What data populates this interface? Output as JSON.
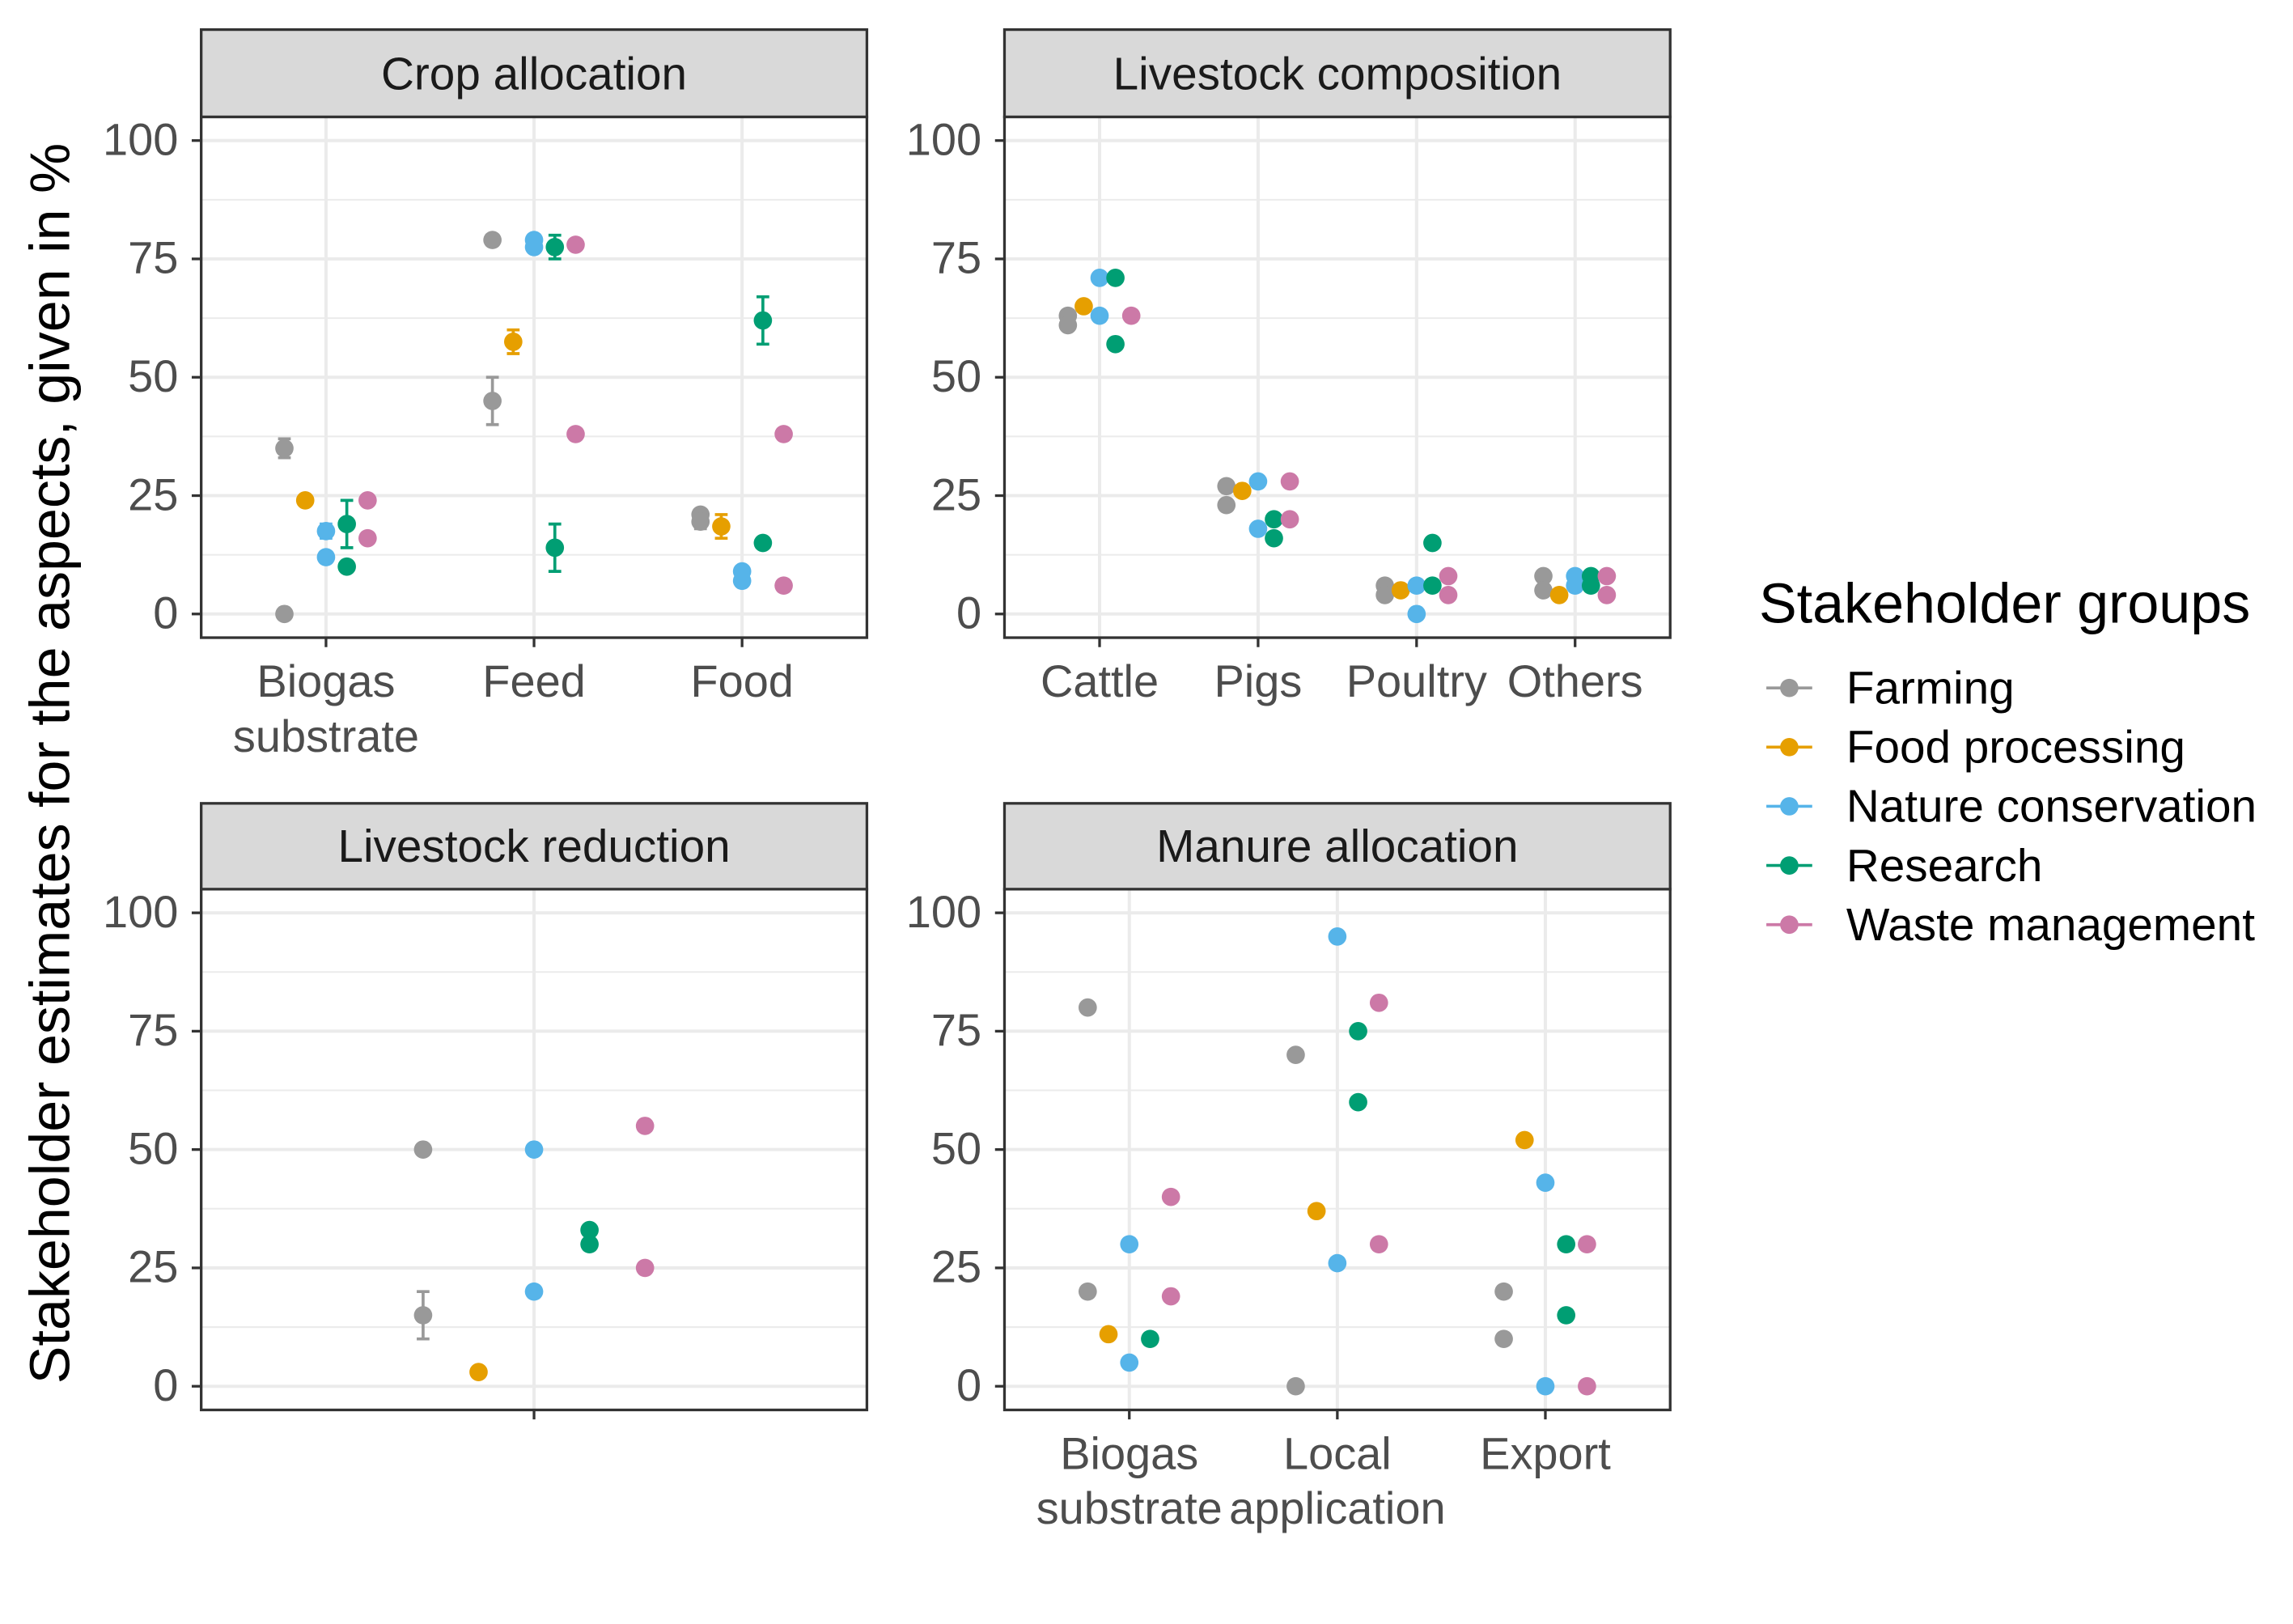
{
  "chart_data": {
    "type": "scatter",
    "ylabel": "Stakeholder estimates for the aspects, given in %",
    "ylim": [
      0,
      100
    ],
    "y_ticks": [
      0,
      25,
      50,
      75,
      100
    ],
    "grid": true,
    "legend": {
      "title": "Stakeholder groups",
      "position": "right"
    },
    "groups": [
      {
        "name": "Farming",
        "color": "#999999"
      },
      {
        "name": "Food processing",
        "color": "#E69F00"
      },
      {
        "name": "Nature conservation",
        "color": "#56B4E9"
      },
      {
        "name": "Research",
        "color": "#009E73"
      },
      {
        "name": "Waste management",
        "color": "#CC79A7"
      }
    ],
    "panels": [
      {
        "title": "Crop allocation",
        "categories": [
          "Biogas\nsubstrate",
          "Feed",
          "Food"
        ],
        "points": [
          {
            "group": "Farming",
            "category": "Biogas\nsubstrate",
            "y": 35,
            "error": [
              33,
              37
            ]
          },
          {
            "group": "Farming",
            "category": "Biogas\nsubstrate",
            "y": 0
          },
          {
            "group": "Food processing",
            "category": "Biogas\nsubstrate",
            "y": 24
          },
          {
            "group": "Nature conservation",
            "category": "Biogas\nsubstrate",
            "y": 17.5,
            "error": [
              16,
              19
            ]
          },
          {
            "group": "Nature conservation",
            "category": "Biogas\nsubstrate",
            "y": 12
          },
          {
            "group": "Research",
            "category": "Biogas\nsubstrate",
            "y": 19,
            "error": [
              14,
              24
            ]
          },
          {
            "group": "Research",
            "category": "Biogas\nsubstrate",
            "y": 10
          },
          {
            "group": "Waste management",
            "category": "Biogas\nsubstrate",
            "y": 24
          },
          {
            "group": "Waste management",
            "category": "Biogas\nsubstrate",
            "y": 16
          },
          {
            "group": "Farming",
            "category": "Feed",
            "y": 79
          },
          {
            "group": "Farming",
            "category": "Feed",
            "y": 45,
            "error": [
              40,
              50
            ]
          },
          {
            "group": "Food processing",
            "category": "Feed",
            "y": 57.5,
            "error": [
              55,
              60
            ]
          },
          {
            "group": "Nature conservation",
            "category": "Feed",
            "y": 79
          },
          {
            "group": "Nature conservation",
            "category": "Feed",
            "y": 77.5
          },
          {
            "group": "Research",
            "category": "Feed",
            "y": 77.5,
            "error": [
              75,
              80
            ]
          },
          {
            "group": "Research",
            "category": "Feed",
            "y": 14,
            "error": [
              9,
              19
            ]
          },
          {
            "group": "Waste management",
            "category": "Feed",
            "y": 78
          },
          {
            "group": "Waste management",
            "category": "Feed",
            "y": 38
          },
          {
            "group": "Farming",
            "category": "Food",
            "y": 21
          },
          {
            "group": "Farming",
            "category": "Food",
            "y": 19.5,
            "error": [
              18,
              21
            ]
          },
          {
            "group": "Food processing",
            "category": "Food",
            "y": 18.5,
            "error": [
              16,
              21
            ]
          },
          {
            "group": "Nature conservation",
            "category": "Food",
            "y": 9
          },
          {
            "group": "Nature conservation",
            "category": "Food",
            "y": 7
          },
          {
            "group": "Research",
            "category": "Food",
            "y": 62,
            "error": [
              57,
              67
            ]
          },
          {
            "group": "Research",
            "category": "Food",
            "y": 15
          },
          {
            "group": "Waste management",
            "category": "Food",
            "y": 38
          },
          {
            "group": "Waste management",
            "category": "Food",
            "y": 6
          }
        ]
      },
      {
        "title": "Livestock composition",
        "categories": [
          "Cattle",
          "Pigs",
          "Poultry",
          "Others"
        ],
        "points": [
          {
            "group": "Farming",
            "category": "Cattle",
            "y": 63
          },
          {
            "group": "Farming",
            "category": "Cattle",
            "y": 61
          },
          {
            "group": "Food processing",
            "category": "Cattle",
            "y": 65
          },
          {
            "group": "Nature conservation",
            "category": "Cattle",
            "y": 71
          },
          {
            "group": "Nature conservation",
            "category": "Cattle",
            "y": 63
          },
          {
            "group": "Research",
            "category": "Cattle",
            "y": 71
          },
          {
            "group": "Research",
            "category": "Cattle",
            "y": 57
          },
          {
            "group": "Waste management",
            "category": "Cattle",
            "y": 63
          },
          {
            "group": "Farming",
            "category": "Pigs",
            "y": 27
          },
          {
            "group": "Farming",
            "category": "Pigs",
            "y": 23
          },
          {
            "group": "Food processing",
            "category": "Pigs",
            "y": 26
          },
          {
            "group": "Nature conservation",
            "category": "Pigs",
            "y": 28
          },
          {
            "group": "Nature conservation",
            "category": "Pigs",
            "y": 18
          },
          {
            "group": "Research",
            "category": "Pigs",
            "y": 20
          },
          {
            "group": "Research",
            "category": "Pigs",
            "y": 16
          },
          {
            "group": "Waste management",
            "category": "Pigs",
            "y": 28
          },
          {
            "group": "Waste management",
            "category": "Pigs",
            "y": 20
          },
          {
            "group": "Farming",
            "category": "Poultry",
            "y": 6
          },
          {
            "group": "Farming",
            "category": "Poultry",
            "y": 4
          },
          {
            "group": "Food processing",
            "category": "Poultry",
            "y": 5
          },
          {
            "group": "Nature conservation",
            "category": "Poultry",
            "y": 6
          },
          {
            "group": "Nature conservation",
            "category": "Poultry",
            "y": 0
          },
          {
            "group": "Research",
            "category": "Poultry",
            "y": 15
          },
          {
            "group": "Research",
            "category": "Poultry",
            "y": 6
          },
          {
            "group": "Waste management",
            "category": "Poultry",
            "y": 8
          },
          {
            "group": "Waste management",
            "category": "Poultry",
            "y": 4
          },
          {
            "group": "Farming",
            "category": "Others",
            "y": 8
          },
          {
            "group": "Farming",
            "category": "Others",
            "y": 5
          },
          {
            "group": "Food processing",
            "category": "Others",
            "y": 4
          },
          {
            "group": "Nature conservation",
            "category": "Others",
            "y": 8
          },
          {
            "group": "Nature conservation",
            "category": "Others",
            "y": 6
          },
          {
            "group": "Research",
            "category": "Others",
            "y": 8
          },
          {
            "group": "Research",
            "category": "Others",
            "y": 6
          },
          {
            "group": "Waste management",
            "category": "Others",
            "y": 8
          },
          {
            "group": "Waste management",
            "category": "Others",
            "y": 4
          }
        ]
      },
      {
        "title": "Livestock reduction",
        "categories": [
          ""
        ],
        "points": [
          {
            "group": "Farming",
            "category": "",
            "y": 50
          },
          {
            "group": "Farming",
            "category": "",
            "y": 15,
            "error": [
              10,
              20
            ]
          },
          {
            "group": "Food processing",
            "category": "",
            "y": 3
          },
          {
            "group": "Nature conservation",
            "category": "",
            "y": 50
          },
          {
            "group": "Nature conservation",
            "category": "",
            "y": 20
          },
          {
            "group": "Research",
            "category": "",
            "y": 33
          },
          {
            "group": "Research",
            "category": "",
            "y": 30
          },
          {
            "group": "Waste management",
            "category": "",
            "y": 55
          },
          {
            "group": "Waste management",
            "category": "",
            "y": 25
          }
        ]
      },
      {
        "title": "Manure allocation",
        "categories": [
          "Biogas\nsubstrate",
          "Local\napplication",
          "Export"
        ],
        "points": [
          {
            "group": "Farming",
            "category": "Biogas\nsubstrate",
            "y": 80
          },
          {
            "group": "Farming",
            "category": "Biogas\nsubstrate",
            "y": 20
          },
          {
            "group": "Food processing",
            "category": "Biogas\nsubstrate",
            "y": 11
          },
          {
            "group": "Nature conservation",
            "category": "Biogas\nsubstrate",
            "y": 30
          },
          {
            "group": "Nature conservation",
            "category": "Biogas\nsubstrate",
            "y": 5
          },
          {
            "group": "Research",
            "category": "Biogas\nsubstrate",
            "y": 10
          },
          {
            "group": "Waste management",
            "category": "Biogas\nsubstrate",
            "y": 40
          },
          {
            "group": "Waste management",
            "category": "Biogas\nsubstrate",
            "y": 19
          },
          {
            "group": "Farming",
            "category": "Local\napplication",
            "y": 70
          },
          {
            "group": "Farming",
            "category": "Local\napplication",
            "y": 0
          },
          {
            "group": "Food processing",
            "category": "Local\napplication",
            "y": 37
          },
          {
            "group": "Nature conservation",
            "category": "Local\napplication",
            "y": 95
          },
          {
            "group": "Nature conservation",
            "category": "Local\napplication",
            "y": 26
          },
          {
            "group": "Research",
            "category": "Local\napplication",
            "y": 75
          },
          {
            "group": "Research",
            "category": "Local\napplication",
            "y": 60
          },
          {
            "group": "Waste management",
            "category": "Local\napplication",
            "y": 81
          },
          {
            "group": "Waste management",
            "category": "Local\napplication",
            "y": 30
          },
          {
            "group": "Farming",
            "category": "Export",
            "y": 20
          },
          {
            "group": "Farming",
            "category": "Export",
            "y": 10
          },
          {
            "group": "Food processing",
            "category": "Export",
            "y": 52
          },
          {
            "group": "Nature conservation",
            "category": "Export",
            "y": 43
          },
          {
            "group": "Nature conservation",
            "category": "Export",
            "y": 0
          },
          {
            "group": "Research",
            "category": "Export",
            "y": 30
          },
          {
            "group": "Research",
            "category": "Export",
            "y": 15
          },
          {
            "group": "Waste management",
            "category": "Export",
            "y": 30
          },
          {
            "group": "Waste management",
            "category": "Export",
            "y": 0
          }
        ]
      }
    ]
  }
}
